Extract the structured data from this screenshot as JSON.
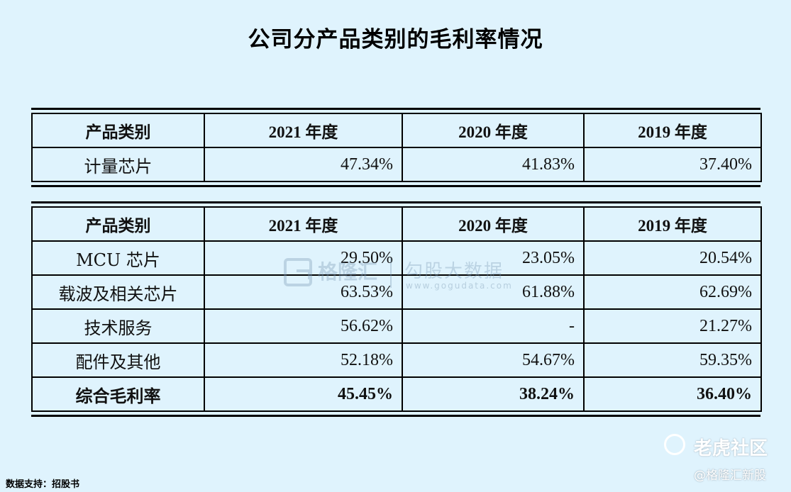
{
  "title": "公司分产品类别的毛利率情况",
  "table1": {
    "headers": [
      "产品类别",
      "2021 年度",
      "2020 年度",
      "2019 年度"
    ],
    "rows": [
      [
        "计量芯片",
        "47.34%",
        "41.83%",
        "37.40%"
      ]
    ]
  },
  "table2": {
    "headers": [
      "产品类别",
      "2021 年度",
      "2020 年度",
      "2019 年度"
    ],
    "rows": [
      [
        "MCU 芯片",
        "29.50%",
        "23.05%",
        "20.54%"
      ],
      [
        "载波及相关芯片",
        "63.53%",
        "61.88%",
        "62.69%"
      ],
      [
        "技术服务",
        "56.62%",
        "-",
        "21.27%"
      ],
      [
        "配件及其他",
        "52.18%",
        "54.67%",
        "59.35%"
      ]
    ],
    "total": [
      "综合毛利率",
      "45.45%",
      "38.24%",
      "36.40%"
    ]
  },
  "watermark": {
    "brand": "格隆汇",
    "product": "勾股大数据",
    "url": "www.gogudata.com"
  },
  "source": "数据支持：招股书",
  "footer_logo": "老虎社区",
  "footer_handle": "@格隆汇新股"
}
